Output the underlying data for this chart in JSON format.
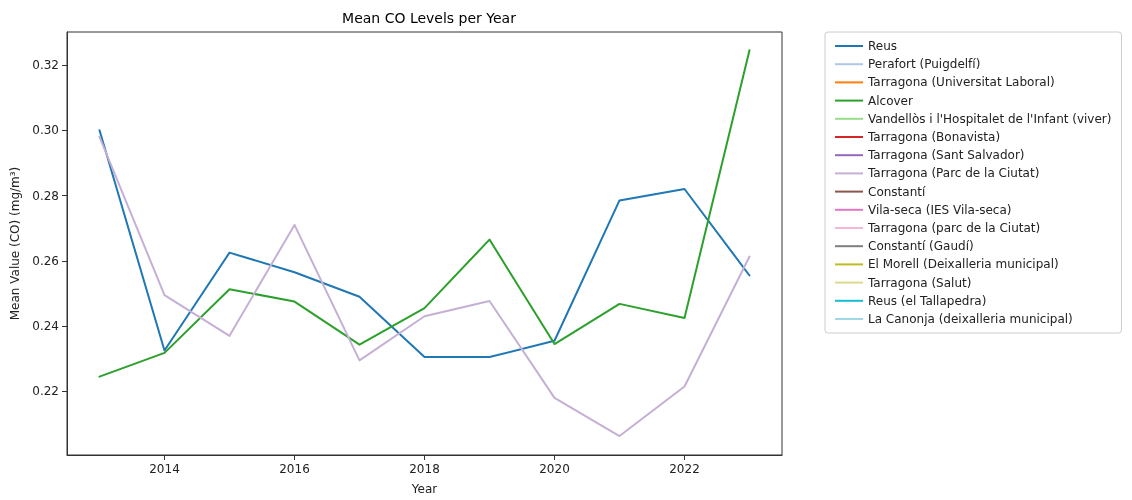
{
  "chart_data": {
    "type": "line",
    "title": "Mean CO Levels per Year",
    "xlabel": "Year",
    "ylabel": "Mean Value (CO) (mg/m³)",
    "x": [
      2013,
      2014,
      2015,
      2016,
      2017,
      2018,
      2019,
      2020,
      2021,
      2022,
      2023
    ],
    "xlim": [
      2012.5,
      2023.5
    ],
    "xticks": [
      2014,
      2016,
      2018,
      2020,
      2022
    ],
    "ylim": [
      0.2005,
      0.3301
    ],
    "yticks": [
      {
        "value": 0.22,
        "label": "0.22"
      },
      {
        "value": 0.24,
        "label": "0.24"
      },
      {
        "value": 0.26,
        "label": "0.26"
      },
      {
        "value": 0.28,
        "label": "0.28"
      },
      {
        "value": 0.3,
        "label": "0.30"
      },
      {
        "value": 0.32,
        "label": "0.32"
      }
    ],
    "grid": false,
    "legend": "right",
    "marker": "none",
    "line_style": "solid",
    "series": [
      {
        "name": "Reus",
        "color": "#1f77b4",
        "values": [
          0.3,
          0.2325,
          0.2625,
          0.2565,
          0.249,
          0.2305,
          0.2305,
          0.2355,
          0.2785,
          0.282,
          0.2555
        ]
      },
      {
        "name": "Perafort (Puigdelfí)",
        "color": "#aec7e8",
        "values": [
          null,
          null,
          null,
          null,
          null,
          null,
          null,
          null,
          null,
          null,
          null
        ]
      },
      {
        "name": "Tarragona (Universitat Laboral)",
        "color": "#ff7f0e",
        "values": [
          null,
          null,
          null,
          null,
          null,
          null,
          null,
          null,
          null,
          null,
          null
        ]
      },
      {
        "name": "Alcover",
        "color": "#2ca02c",
        "values": [
          0.2245,
          0.2318,
          0.2513,
          0.2475,
          0.2343,
          0.2455,
          0.2665,
          0.2345,
          0.2468,
          0.2425,
          0.3245
        ]
      },
      {
        "name": "Vandellòs i l'Hospitalet de l'Infant (viver)",
        "color": "#98df8a",
        "values": [
          null,
          null,
          null,
          null,
          null,
          null,
          null,
          null,
          null,
          null,
          null
        ]
      },
      {
        "name": "Tarragona (Bonavista)",
        "color": "#d62728",
        "values": [
          null,
          null,
          null,
          null,
          null,
          null,
          null,
          null,
          null,
          null,
          null
        ]
      },
      {
        "name": "Tarragona (Sant Salvador)",
        "color": "#9467bd",
        "values": [
          null,
          null,
          null,
          null,
          null,
          null,
          null,
          null,
          null,
          null,
          null
        ]
      },
      {
        "name": "Tarragona (Parc de la Ciutat)",
        "color": "#c5b0d5",
        "values": [
          0.298,
          0.2495,
          0.237,
          0.271,
          0.2295,
          0.243,
          0.2477,
          0.218,
          0.2063,
          0.2215,
          0.2613
        ]
      },
      {
        "name": "Constantí",
        "color": "#8c564b",
        "values": [
          null,
          null,
          null,
          null,
          null,
          null,
          null,
          null,
          null,
          null,
          null
        ]
      },
      {
        "name": "Vila-seca (IES Vila-seca)",
        "color": "#e377c2",
        "values": [
          null,
          null,
          null,
          null,
          null,
          null,
          null,
          null,
          null,
          null,
          null
        ]
      },
      {
        "name": "Tarragona (parc de la Ciutat)",
        "color": "#f7b6d2",
        "values": [
          null,
          null,
          null,
          null,
          null,
          null,
          null,
          null,
          null,
          null,
          null
        ]
      },
      {
        "name": "Constantí (Gaudí)",
        "color": "#7f7f7f",
        "values": [
          null,
          null,
          null,
          null,
          null,
          null,
          null,
          null,
          null,
          null,
          null
        ]
      },
      {
        "name": "El Morell (Deixalleria municipal)",
        "color": "#bcbd22",
        "values": [
          null,
          null,
          null,
          null,
          null,
          null,
          null,
          null,
          null,
          null,
          null
        ]
      },
      {
        "name": "Tarragona (Salut)",
        "color": "#dbdb8d",
        "values": [
          null,
          null,
          null,
          null,
          null,
          null,
          null,
          null,
          null,
          null,
          null
        ]
      },
      {
        "name": "Reus (el Tallapedra)",
        "color": "#17becf",
        "values": [
          null,
          null,
          null,
          null,
          null,
          null,
          null,
          null,
          null,
          null,
          null
        ]
      },
      {
        "name": "La Canonja (deixalleria municipal)",
        "color": "#9edae5",
        "values": [
          null,
          null,
          null,
          null,
          null,
          null,
          null,
          null,
          null,
          null,
          null
        ]
      }
    ]
  }
}
